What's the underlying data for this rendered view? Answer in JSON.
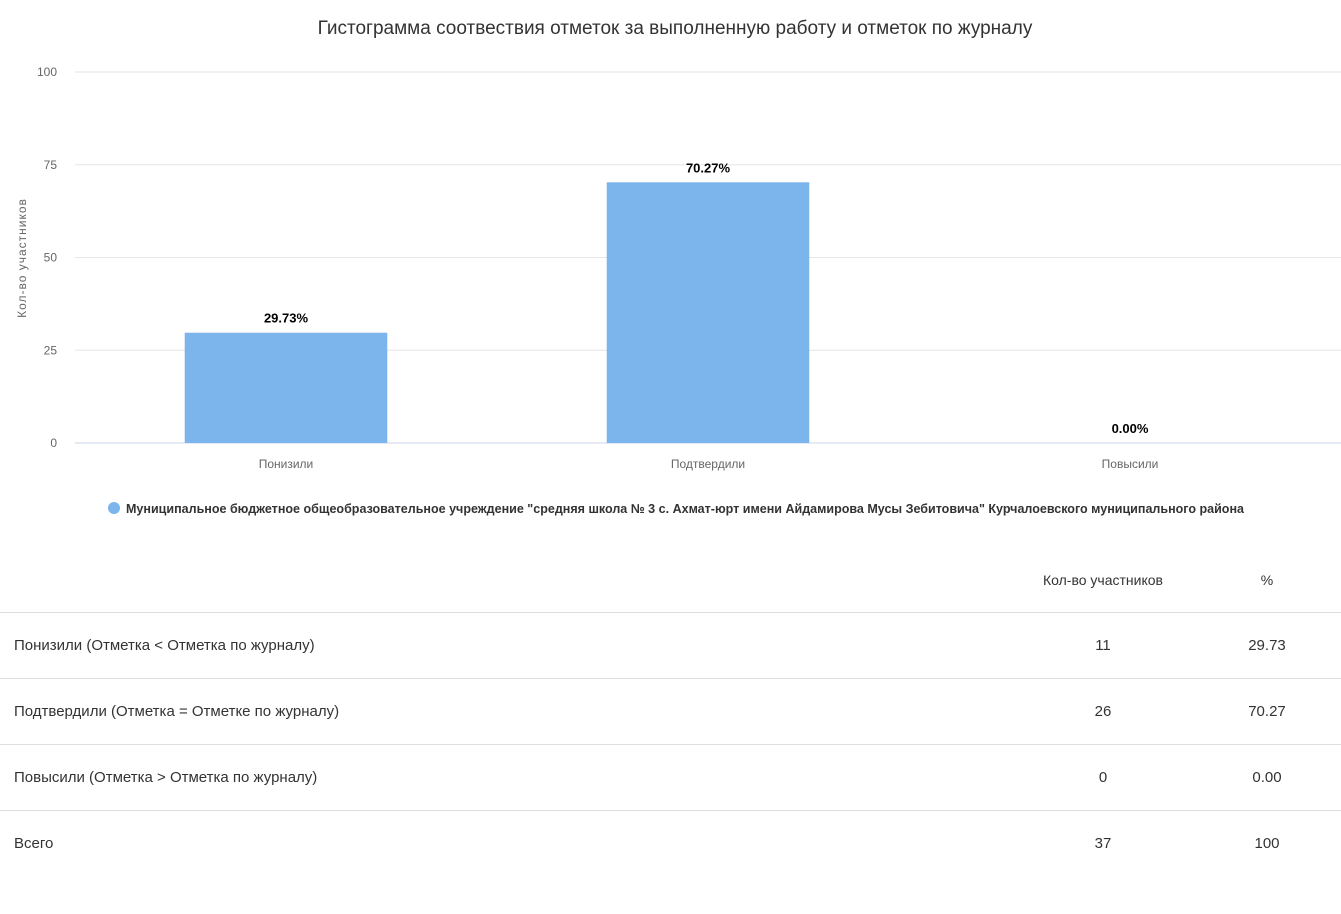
{
  "chart_data": {
    "type": "bar",
    "title": "Гистограмма соотвествия отметок за выполненную работу и отметок по журналу",
    "ylabel": "Кол-во участников",
    "xlabel": "",
    "ylim": [
      0,
      100
    ],
    "y_ticks": [
      "0",
      "25",
      "50",
      "75",
      "100"
    ],
    "grid": true,
    "legend_position": "bottom-center",
    "categories": [
      "Понизили",
      "Подтвердили",
      "Повысили"
    ],
    "series": [
      {
        "name": "Муниципальное бюджетное общеобразовательное учреждение \"средняя школа № 3 с. Ахмат-юрт имени Айдамирова Мусы Зебитовича\" Курчалоевского муниципального района",
        "values": [
          29.73,
          70.27,
          0.0
        ],
        "data_labels": [
          "29.73%",
          "70.27%",
          "0.00%"
        ],
        "color": "#7cb5ec"
      }
    ]
  },
  "table": {
    "headers": [
      "",
      "Кол-во участников",
      "%"
    ],
    "rows": [
      {
        "label": "Понизили (Отметка < Отметка по журналу)",
        "count": "11",
        "percent": "29.73"
      },
      {
        "label": "Подтвердили (Отметка = Отметке по журналу)",
        "count": "26",
        "percent": "70.27"
      },
      {
        "label": "Повысили (Отметка > Отметка по журналу)",
        "count": "0",
        "percent": "0.00"
      },
      {
        "label": "Всего",
        "count": "37",
        "percent": "100"
      }
    ]
  },
  "colors": {
    "bar": "#7cb5ec",
    "grid": "#e6e6e6",
    "text": "#333333",
    "axis_text": "#666666"
  }
}
